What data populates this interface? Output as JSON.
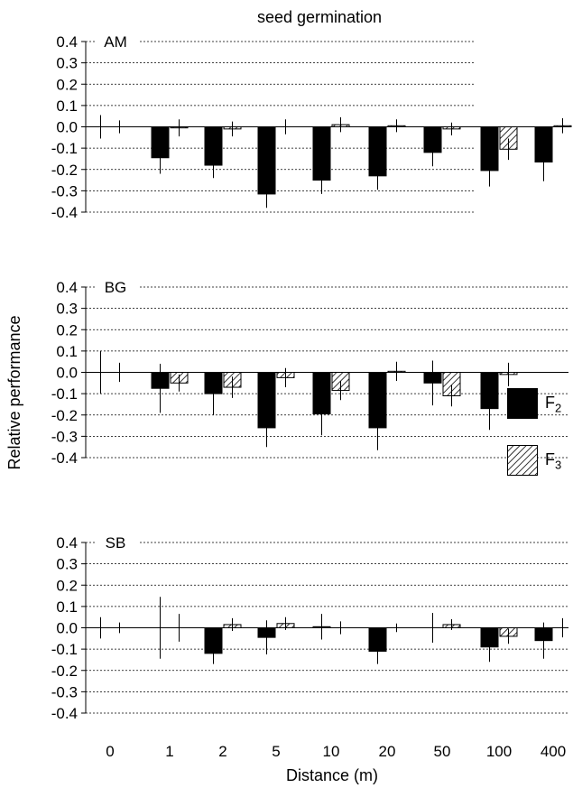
{
  "chart_data": {
    "type": "bar",
    "title": "seed germination",
    "xlabel": "Distance (m)",
    "ylabel": "Relative performance",
    "categories": [
      "0",
      "1",
      "2",
      "5",
      "10",
      "20",
      "50",
      "100",
      "400"
    ],
    "ylim": [
      -0.4,
      0.4
    ],
    "yticks": [
      "0.4",
      "0.3",
      "0.2",
      "0.1",
      "0.0",
      "-0.1",
      "-0.2",
      "-0.3",
      "-0.4"
    ],
    "grid": "dotted horizontal",
    "legend": {
      "placement": "right, between top and middle panels",
      "entries": [
        {
          "label": "F",
          "sub": "2",
          "style": "solid",
          "color": "#000000"
        },
        {
          "label": "F",
          "sub": "3",
          "style": "hatched",
          "color": "#ffffff"
        }
      ]
    },
    "panels": [
      {
        "label": "AM",
        "series": [
          {
            "style": "solid",
            "values": [
              0,
              -0.145,
              -0.18,
              -0.315,
              -0.25,
              -0.23,
              -0.12,
              -0.205,
              -0.165
            ],
            "errors": [
              0.055,
              0.075,
              0.06,
              0.065,
              0.065,
              0.065,
              0.065,
              0.075,
              0.09
            ]
          },
          {
            "style": "hatched",
            "values": [
              0,
              -0.005,
              -0.01,
              0,
              0.01,
              0.005,
              -0.01,
              -0.105,
              0.005
            ],
            "errors": [
              0.03,
              0.04,
              0.035,
              0.035,
              0.035,
              0.03,
              0.03,
              0.05,
              0.035
            ]
          }
        ]
      },
      {
        "label": "BG",
        "series": [
          {
            "style": "solid",
            "values": [
              0,
              -0.075,
              -0.1,
              -0.26,
              -0.195,
              -0.26,
              -0.05,
              -0.17,
              0
            ],
            "errors": [
              0.1,
              0.115,
              0.1,
              0.09,
              0.1,
              0.105,
              0.105,
              0.1,
              0
            ]
          },
          {
            "style": "hatched",
            "values": [
              0,
              -0.05,
              -0.07,
              -0.025,
              -0.085,
              0.005,
              -0.11,
              -0.01,
              0
            ],
            "errors": [
              0.045,
              0.04,
              0.05,
              0.045,
              0.045,
              0.045,
              0.05,
              0.055,
              0
            ]
          }
        ]
      },
      {
        "label": "SB",
        "series": [
          {
            "style": "solid",
            "values": [
              0,
              0,
              -0.12,
              -0.045,
              0.005,
              -0.11,
              0,
              -0.09,
              -0.06
            ],
            "errors": [
              0.05,
              0.145,
              0.05,
              0.08,
              0.06,
              0.06,
              0.07,
              0.07,
              0.085
            ]
          },
          {
            "style": "hatched",
            "values": [
              0,
              0,
              0.015,
              0.02,
              0,
              0,
              0.015,
              -0.04,
              0
            ],
            "errors": [
              0.025,
              0.065,
              0.03,
              0.03,
              0.03,
              0.02,
              0.025,
              0.035,
              0.045
            ]
          }
        ]
      }
    ]
  }
}
